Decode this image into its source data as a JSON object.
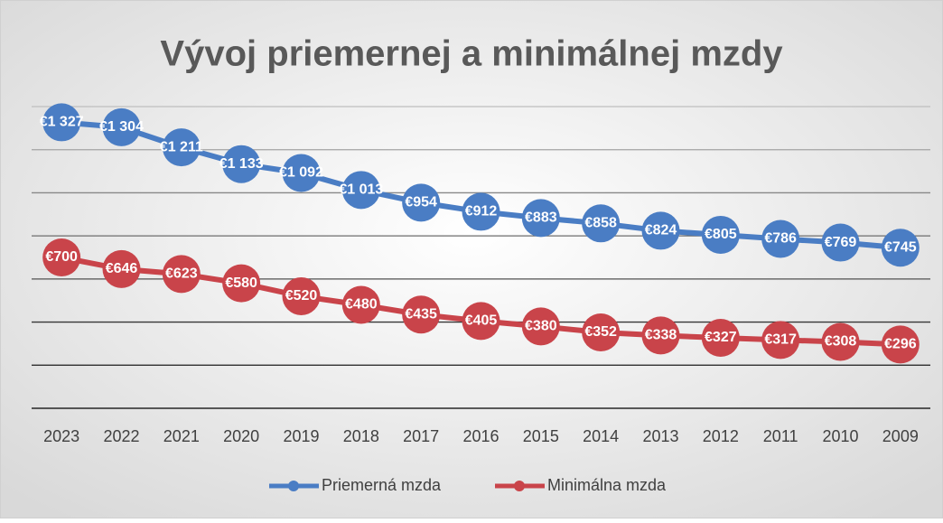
{
  "chart_data": {
    "type": "line",
    "title": "Vývoj priemernej a minimálnej mzdy",
    "categories": [
      "2023",
      "2022",
      "2021",
      "2020",
      "2019",
      "2018",
      "2017",
      "2016",
      "2015",
      "2014",
      "2013",
      "2012",
      "2011",
      "2010",
      "2009"
    ],
    "series": [
      {
        "name": "Priemerná mzda",
        "color": "#4a7dc4",
        "values": [
          1327,
          1304,
          1211,
          1133,
          1092,
          1013,
          954,
          912,
          883,
          858,
          824,
          805,
          786,
          769,
          745
        ],
        "value_labels": [
          "€1 327",
          "€1 304",
          "€1 211",
          "€1 133",
          "€1 092",
          "€1 013",
          "€954",
          "€912",
          "€883",
          "€858",
          "€824",
          "€805",
          "€786",
          "€769",
          "€745"
        ]
      },
      {
        "name": "Minimálna mzda",
        "color": "#c9444a",
        "values": [
          700,
          646,
          623,
          580,
          520,
          480,
          435,
          405,
          380,
          352,
          338,
          327,
          317,
          308,
          296
        ],
        "value_labels": [
          "€700",
          "€646",
          "€623",
          "€580",
          "€520",
          "€480",
          "€435",
          "€405",
          "€380",
          "€352",
          "€338",
          "€327",
          "€317",
          "€308",
          "€296"
        ]
      }
    ],
    "ylim": [
      0,
      1400
    ],
    "yticks": [
      0,
      200,
      400,
      600,
      800,
      1000,
      1200,
      1400
    ],
    "grid": true,
    "legend": "bottom"
  }
}
